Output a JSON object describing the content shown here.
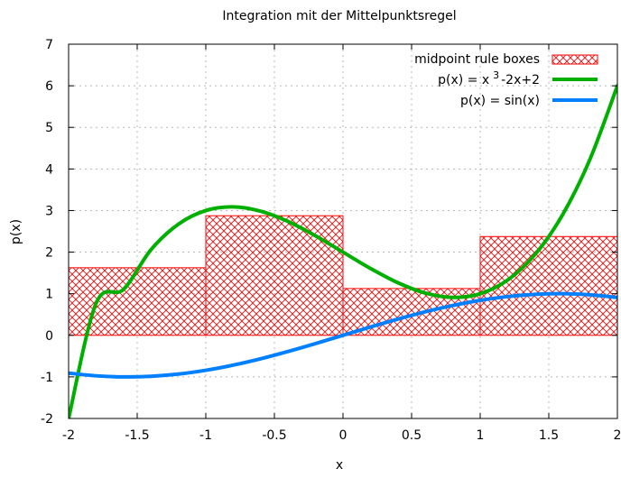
{
  "chart_data": {
    "type": "line",
    "title": "Integration mit der Mittelpunktsregel",
    "xlabel": "x",
    "ylabel": "p(x)",
    "xlim": [
      -2,
      2
    ],
    "ylim": [
      -2,
      7
    ],
    "x_ticks": [
      "-2",
      "-1.5",
      "-1",
      "-0.5",
      "0",
      "0.5",
      "1",
      "1.5",
      "2"
    ],
    "y_ticks": [
      "-2",
      "-1",
      "0",
      "1",
      "2",
      "3",
      "4",
      "5",
      "6",
      "7"
    ],
    "grid": true,
    "legend_position": "top-right",
    "boxes": {
      "name": "midpoint rule boxes",
      "color": "#ff0000",
      "pattern": "crosshatch",
      "intervals": [
        {
          "x0": -2,
          "x1": -1,
          "height": 1.625
        },
        {
          "x0": -1,
          "x1": 0,
          "height": 2.875
        },
        {
          "x0": 0,
          "x1": 1,
          "height": 1.125
        },
        {
          "x0": 1,
          "x1": 2,
          "height": 2.375
        }
      ]
    },
    "series": [
      {
        "name_parts": [
          "p(x) = x",
          "3",
          "-2x+2"
        ],
        "color": "#00b000",
        "x": [
          -2,
          -1.8,
          -1.6,
          -1.4,
          -1.2,
          -1.0,
          -0.8,
          -0.6,
          -0.4,
          -0.2,
          0,
          0.2,
          0.4,
          0.6,
          0.8,
          1.0,
          1.2,
          1.4,
          1.6,
          1.8,
          2.0
        ],
        "y": [
          -2,
          0.768,
          1.104,
          2.056,
          2.672,
          3.0,
          3.088,
          2.984,
          2.736,
          2.392,
          2.0,
          1.608,
          1.264,
          1.016,
          0.912,
          1.0,
          1.328,
          1.944,
          2.896,
          4.232,
          6.0
        ]
      },
      {
        "name": "p(x) = sin(x)",
        "color": "#0080ff",
        "x": [
          -2,
          -1.8,
          -1.6,
          -1.4,
          -1.2,
          -1.0,
          -0.8,
          -0.6,
          -0.4,
          -0.2,
          0,
          0.2,
          0.4,
          0.6,
          0.8,
          1.0,
          1.2,
          1.4,
          1.6,
          1.8,
          2.0
        ],
        "y": [
          -0.909,
          -0.974,
          -1.0,
          -0.985,
          -0.932,
          -0.841,
          -0.717,
          -0.565,
          -0.389,
          -0.199,
          0,
          0.199,
          0.389,
          0.565,
          0.717,
          0.841,
          0.932,
          0.985,
          1.0,
          0.974,
          0.909
        ]
      }
    ]
  }
}
